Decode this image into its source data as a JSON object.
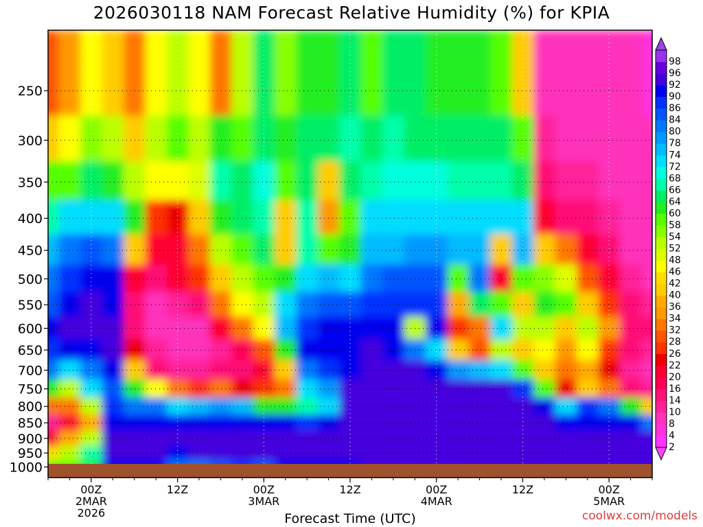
{
  "title": "2026030118 NAM Forecast Relative Humidity (%) for KPIA",
  "credit": "coolwx.com/models",
  "chart_data": {
    "type": "heatmap",
    "title": "2026030118 NAM Forecast Relative Humidity (%) for KPIA",
    "xlabel": "Forecast Time (UTC)",
    "ylabel": "",
    "y_scale": "log-pressure (hPa), inverted",
    "y_ticks": [
      250,
      300,
      350,
      400,
      450,
      500,
      550,
      600,
      650,
      700,
      750,
      800,
      850,
      900,
      950,
      1000
    ],
    "x_ticks": [
      {
        "hour": 6,
        "label": [
          "00Z",
          "2MAR",
          "2026"
        ]
      },
      {
        "hour": 18,
        "label": [
          "12Z"
        ]
      },
      {
        "hour": 30,
        "label": [
          "00Z",
          "3MAR"
        ]
      },
      {
        "hour": 42,
        "label": [
          "12Z"
        ]
      },
      {
        "hour": 54,
        "label": [
          "00Z",
          "4MAR"
        ]
      },
      {
        "hour": 66,
        "label": [
          "12Z"
        ]
      },
      {
        "hour": 78,
        "label": [
          "00Z",
          "5MAR"
        ]
      }
    ],
    "x_range_hours": [
      0,
      84
    ],
    "y_range_hpa": [
      200,
      1040
    ],
    "grid": true,
    "colorbar": {
      "levels": [
        2,
        4,
        8,
        10,
        14,
        16,
        20,
        22,
        26,
        28,
        32,
        34,
        36,
        40,
        42,
        46,
        48,
        52,
        54,
        58,
        60,
        64,
        66,
        68,
        72,
        74,
        78,
        80,
        84,
        86,
        90,
        92,
        96,
        98
      ],
      "colors": [
        "#ff33ff",
        "#ff33dd",
        "#ff33bb",
        "#ff2299",
        "#ff1177",
        "#ff0055",
        "#ff0033",
        "#ee0000",
        "#ff3300",
        "#ff5500",
        "#ff7700",
        "#ff9900",
        "#ffaa00",
        "#ffcc00",
        "#ffdd00",
        "#ffff00",
        "#ddff00",
        "#bbff00",
        "#88ff00",
        "#55ff00",
        "#22ee22",
        "#00ee66",
        "#00ffaa",
        "#00ffdd",
        "#00ddff",
        "#00bbff",
        "#0099ff",
        "#0077ff",
        "#0055ff",
        "#0033ff",
        "#0000ee",
        "#4400dd",
        "#6600dd",
        "#9933ee"
      ]
    },
    "rh_columns": [
      {
        "hour": 0,
        "rh": [
          28,
          40,
          55,
          66,
          74,
          80,
          84,
          90,
          86,
          80,
          60,
          30,
          10,
          20,
          42,
          58
        ]
      },
      {
        "hour": 3,
        "rh": [
          34,
          46,
          58,
          70,
          80,
          86,
          90,
          92,
          88,
          70,
          50,
          30,
          20,
          36,
          52,
          56
        ]
      },
      {
        "hour": 6,
        "rh": [
          46,
          54,
          62,
          72,
          84,
          90,
          92,
          92,
          90,
          80,
          72,
          50,
          36,
          52,
          66,
          60
        ]
      },
      {
        "hour": 9,
        "rh": [
          40,
          50,
          60,
          70,
          80,
          88,
          90,
          92,
          92,
          90,
          84,
          86,
          90,
          92,
          92,
          90
        ]
      },
      {
        "hour": 12,
        "rh": [
          30,
          40,
          50,
          60,
          40,
          20,
          12,
          14,
          22,
          40,
          60,
          80,
          90,
          92,
          92,
          90
        ]
      },
      {
        "hour": 15,
        "rh": [
          46,
          50,
          44,
          26,
          18,
          12,
          8,
          8,
          10,
          14,
          44,
          80,
          90,
          92,
          92,
          90
        ]
      },
      {
        "hour": 18,
        "rh": [
          52,
          56,
          46,
          22,
          20,
          18,
          10,
          8,
          8,
          10,
          30,
          72,
          88,
          92,
          90,
          80
        ]
      },
      {
        "hour": 21,
        "rh": [
          44,
          52,
          48,
          40,
          30,
          24,
          14,
          8,
          8,
          10,
          24,
          74,
          88,
          92,
          92,
          80
        ]
      },
      {
        "hour": 24,
        "rh": [
          30,
          60,
          66,
          60,
          50,
          40,
          30,
          18,
          10,
          12,
          30,
          78,
          90,
          92,
          92,
          84
        ]
      },
      {
        "hour": 27,
        "rh": [
          50,
          58,
          64,
          62,
          56,
          50,
          44,
          30,
          16,
          12,
          22,
          74,
          90,
          92,
          92,
          86
        ]
      },
      {
        "hour": 30,
        "rh": [
          62,
          62,
          68,
          66,
          62,
          56,
          52,
          44,
          28,
          18,
          24,
          60,
          88,
          92,
          92,
          84
        ]
      },
      {
        "hour": 33,
        "rh": [
          54,
          60,
          56,
          40,
          40,
          60,
          70,
          74,
          60,
          40,
          30,
          60,
          88,
          92,
          92,
          88
        ]
      },
      {
        "hour": 36,
        "rh": [
          60,
          62,
          64,
          66,
          66,
          70,
          80,
          86,
          88,
          80,
          70,
          66,
          86,
          92,
          92,
          90
        ]
      },
      {
        "hour": 39,
        "rh": [
          60,
          64,
          40,
          34,
          56,
          74,
          84,
          90,
          90,
          86,
          78,
          70,
          88,
          92,
          92,
          90
        ]
      },
      {
        "hour": 42,
        "rh": [
          62,
          66,
          64,
          58,
          60,
          72,
          82,
          88,
          90,
          90,
          92,
          92,
          92,
          92,
          92,
          90
        ]
      },
      {
        "hour": 45,
        "rh": [
          58,
          64,
          66,
          70,
          74,
          80,
          86,
          90,
          92,
          92,
          92,
          92,
          92,
          92,
          92,
          92
        ]
      },
      {
        "hour": 48,
        "rh": [
          64,
          66,
          68,
          70,
          74,
          82,
          86,
          88,
          90,
          92,
          92,
          92,
          92,
          92,
          92,
          92
        ]
      },
      {
        "hour": 51,
        "rh": [
          62,
          64,
          68,
          72,
          76,
          82,
          86,
          52,
          80,
          92,
          92,
          92,
          92,
          92,
          92,
          92
        ]
      },
      {
        "hour": 54,
        "rh": [
          60,
          64,
          68,
          72,
          78,
          82,
          86,
          88,
          70,
          90,
          92,
          92,
          92,
          92,
          92,
          92
        ]
      },
      {
        "hour": 57,
        "rh": [
          60,
          62,
          66,
          70,
          74,
          56,
          36,
          26,
          40,
          78,
          92,
          92,
          92,
          92,
          92,
          92
        ]
      },
      {
        "hour": 60,
        "rh": [
          60,
          62,
          66,
          70,
          74,
          80,
          62,
          30,
          28,
          74,
          92,
          92,
          92,
          92,
          92,
          92
        ]
      },
      {
        "hour": 63,
        "rh": [
          56,
          62,
          66,
          70,
          40,
          20,
          58,
          72,
          50,
          70,
          92,
          92,
          92,
          92,
          92,
          92
        ]
      },
      {
        "hour": 66,
        "rh": [
          40,
          56,
          62,
          70,
          74,
          56,
          40,
          52,
          40,
          56,
          86,
          92,
          92,
          92,
          92,
          92
        ]
      },
      {
        "hour": 69,
        "rh": [
          8,
          10,
          14,
          20,
          40,
          54,
          60,
          52,
          44,
          40,
          56,
          90,
          92,
          92,
          92,
          92
        ]
      },
      {
        "hour": 72,
        "rh": [
          6,
          8,
          10,
          14,
          30,
          48,
          56,
          40,
          34,
          30,
          22,
          72,
          90,
          92,
          92,
          92
        ]
      },
      {
        "hour": 75,
        "rh": [
          6,
          8,
          10,
          12,
          20,
          28,
          40,
          50,
          44,
          36,
          40,
          86,
          90,
          92,
          92,
          92
        ]
      },
      {
        "hour": 78,
        "rh": [
          6,
          6,
          8,
          10,
          14,
          18,
          26,
          34,
          26,
          22,
          30,
          80,
          90,
          92,
          92,
          92
        ]
      },
      {
        "hour": 81,
        "rh": [
          6,
          6,
          6,
          8,
          8,
          10,
          12,
          14,
          12,
          10,
          14,
          60,
          88,
          92,
          92,
          92
        ]
      },
      {
        "hour": 84,
        "rh": [
          4,
          6,
          6,
          8,
          8,
          8,
          10,
          12,
          10,
          8,
          10,
          40,
          80,
          92,
          92,
          92
        ]
      }
    ]
  }
}
